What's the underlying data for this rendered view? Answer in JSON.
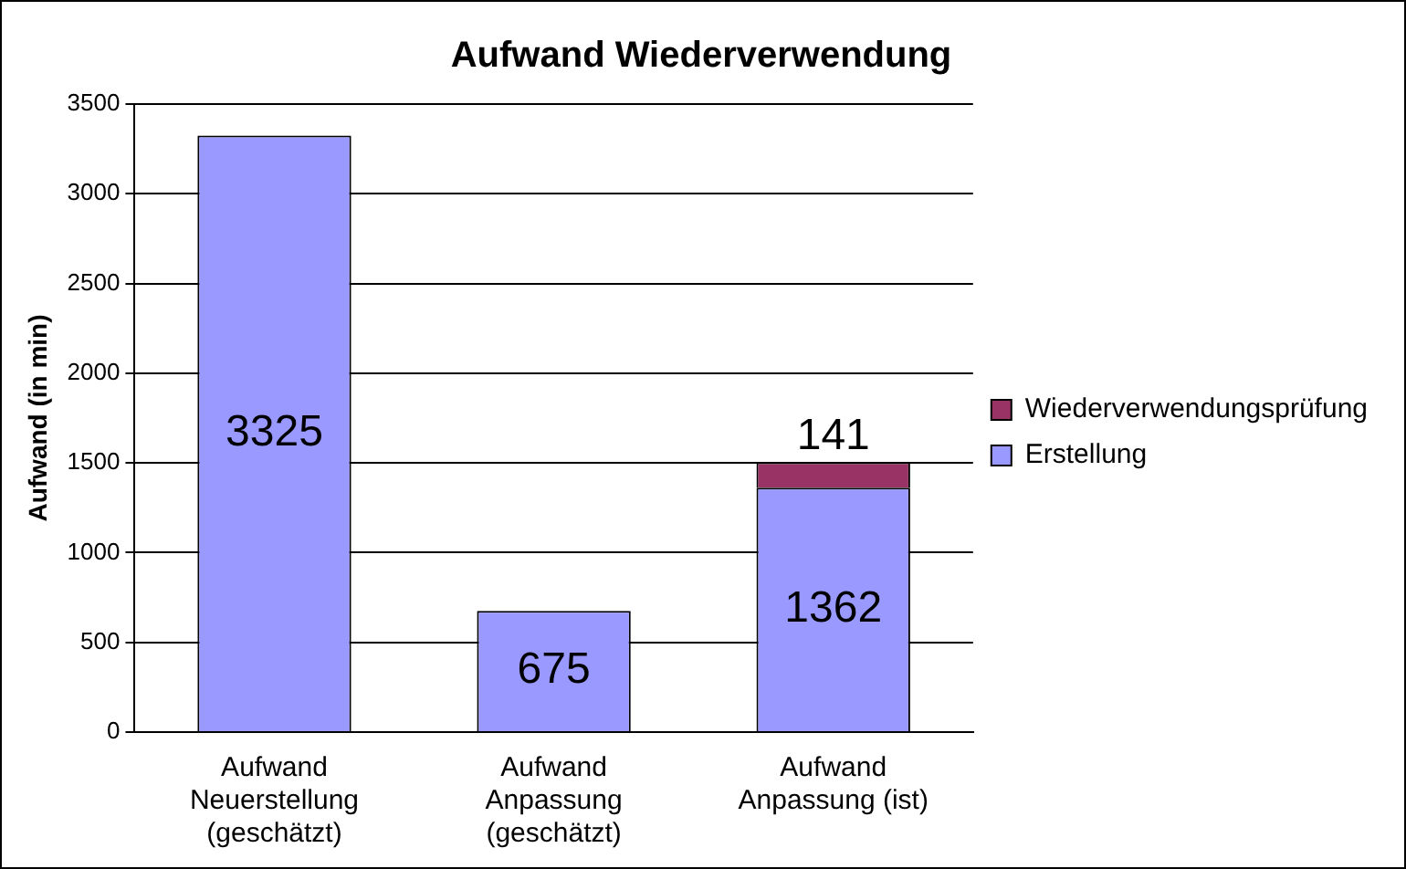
{
  "chart_data": {
    "type": "bar",
    "title": "Aufwand Wiederverwendung",
    "ylabel": "Aufwand (in min)",
    "categories": [
      "Aufwand Neuerstellung (geschätzt)",
      "Aufwand Anpassung (geschätzt)",
      "Aufwand Anpassung (ist)"
    ],
    "stacked": true,
    "series": [
      {
        "name": "Erstellung",
        "color": "#9999ff",
        "values": [
          3325,
          675,
          1362
        ]
      },
      {
        "name": "Wiederverwendungsprüfung",
        "color": "#993366",
        "values": [
          null,
          null,
          141
        ]
      }
    ],
    "ylim": [
      0,
      3500
    ],
    "yticks": [
      0,
      500,
      1000,
      1500,
      2000,
      2500,
      3000,
      3500
    ],
    "grid": "y",
    "legend": "right",
    "data_labels": true
  }
}
